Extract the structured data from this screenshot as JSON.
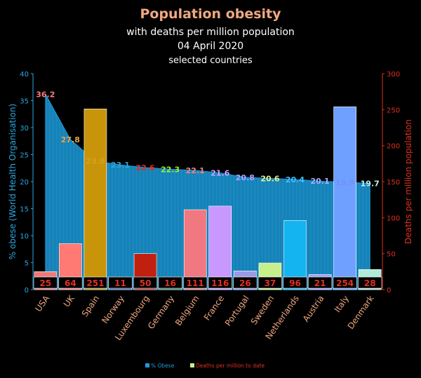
{
  "chart_data": {
    "type": "bar",
    "title": "Population obesity",
    "subtitles": [
      "with deaths per million population",
      "04 April 2020",
      "selected countries"
    ],
    "ylabel": "% obese (World Health Organisation)",
    "y2label": "Deaths per million population",
    "ylim": [
      0,
      40
    ],
    "y2lim": [
      0,
      300
    ],
    "yticks": [
      "0",
      "5",
      "10",
      "15",
      "20",
      "25",
      "30",
      "35",
      "40"
    ],
    "y2ticks": [
      "0",
      "50",
      "100",
      "150",
      "200",
      "250",
      "300"
    ],
    "categories": [
      "USA",
      "UK",
      "Spain",
      "Norway",
      "Luxembourg",
      "Germany",
      "Belgium",
      "France",
      "Portugal",
      "Sweden",
      "Netherlands",
      "Austria",
      "Italy",
      "Denmark"
    ],
    "series": [
      {
        "name": "% Obese",
        "axis": "left",
        "style": "area",
        "color": "#1e9ad6",
        "values": [
          36.2,
          27.8,
          23.8,
          23.1,
          22.6,
          22.3,
          22.1,
          21.6,
          20.8,
          20.6,
          20.4,
          20.1,
          19.9,
          19.7
        ],
        "labels": [
          "36.2",
          "27.8",
          "23.8",
          "23.1",
          "22.6",
          "22.3",
          "22.1",
          "21.6",
          "20.8",
          "20.6",
          "20.4",
          "20.1",
          "19.9",
          "19.7"
        ],
        "label_colors": [
          "#ff7a80",
          "#f0a040",
          "#d8a020",
          "#2aa8e0",
          "#e03020",
          "#9ef030",
          "#ff8080",
          "#d0a0ff",
          "#b0a0ff",
          "#e8f090",
          "#40c0ff",
          "#a8b0ff",
          "#7090ff",
          "#c0f0e8"
        ]
      },
      {
        "name": "Deaths per million to date",
        "axis": "right",
        "style": "bar",
        "values": [
          25,
          64,
          251,
          11,
          50,
          16,
          111,
          116,
          26,
          37,
          96,
          21,
          254,
          28
        ],
        "labels": [
          "25",
          "64",
          "251",
          "11",
          "50",
          "16",
          "111",
          "116",
          "26",
          "37",
          "96",
          "21",
          "254",
          "28"
        ],
        "colors": [
          "#f07878",
          "#ff7a72",
          "#c8940a",
          "#3a5aa0",
          "#c02010",
          "#2f7a50",
          "#f07880",
          "#c898ff",
          "#9a9ae8",
          "#c8f08a",
          "#14b4f0",
          "#9aa0ff",
          "#6fa0ff",
          "#b0ead8"
        ],
        "legend_color": "#c8f08a"
      }
    ],
    "legend": [
      "% Obese",
      "Deaths per million to date"
    ],
    "legend_position": "bottom",
    "grid": false
  }
}
